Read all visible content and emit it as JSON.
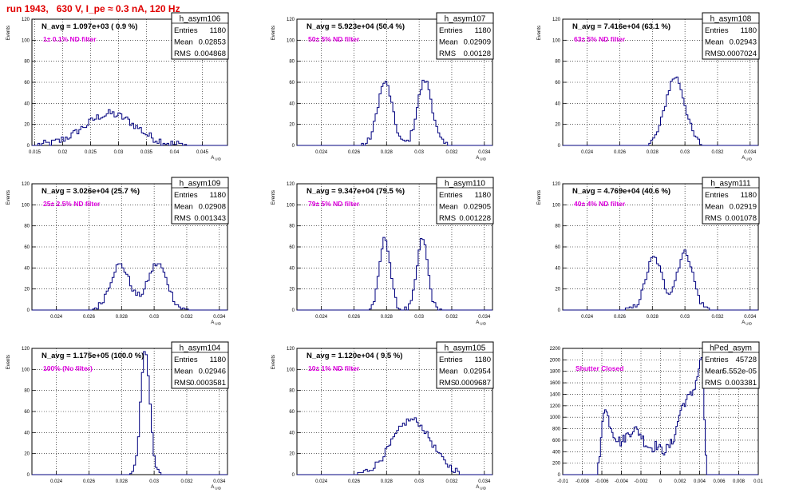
{
  "run_title": "run 1943,   630 V, I_pe ≈ 0.3 nA, 120 Hz",
  "colors": {
    "histogram": "#00007f",
    "stats_box": "#000000",
    "annotation": "#dd00dd",
    "title": "#e00000",
    "grid": "#000000"
  },
  "stats_labels": {
    "entries": "Entries",
    "mean": "Mean",
    "rms": "RMS"
  },
  "chart_data": [
    {
      "type": "histogram",
      "name": "h_asym106",
      "navg": "N_avg = 1.097e+03 ( 0.9 %)",
      "note": "1± 0.1% ND filter",
      "stats": {
        "entries": "1180",
        "mean": "0.02853",
        "rms": "0.004868"
      },
      "ylabel": "Events",
      "xlabel": "A_UID",
      "xlim": [
        0.0145,
        0.0495
      ],
      "ylim": [
        0,
        120
      ],
      "xticks": [
        0.015,
        0.02,
        0.025,
        0.03,
        0.035,
        0.04,
        0.045
      ],
      "xticklabels": [
        "0.015",
        "0.02",
        "0.025",
        "0.03",
        "0.035",
        "0.04",
        "0.045"
      ],
      "yticks": [
        0,
        20,
        40,
        60,
        80,
        100,
        120
      ],
      "peaks": [
        {
          "mu": 0.0285,
          "sigma": 0.0046,
          "h": 30
        }
      ],
      "noise": 8,
      "range": [
        0.0155,
        0.043
      ]
    },
    {
      "type": "histogram",
      "name": "h_asym107",
      "navg": "N_avg = 5.923e+04 (50.4 %)",
      "note": "50± 5% ND filter",
      "stats": {
        "entries": "1180",
        "mean": "0.02909",
        "rms": "0.00128"
      },
      "ylabel": "Events",
      "xlabel": "A_UID",
      "xlim": [
        0.0225,
        0.0345
      ],
      "ylim": [
        0,
        120
      ],
      "xticks": [
        0.024,
        0.026,
        0.028,
        0.03,
        0.032,
        0.034
      ],
      "xticklabels": [
        "0.024",
        "0.026",
        "0.028",
        "0.03",
        "0.032",
        "0.034"
      ],
      "yticks": [
        0,
        20,
        40,
        60,
        80,
        100,
        120
      ],
      "peaks": [
        {
          "mu": 0.0279,
          "sigma": 0.00045,
          "h": 60
        },
        {
          "mu": 0.03035,
          "sigma": 0.00045,
          "h": 62
        }
      ],
      "noise": 6,
      "range": [
        0.0265,
        0.0318
      ]
    },
    {
      "type": "histogram",
      "name": "h_asym108",
      "navg": "N_avg = 7.416e+04 (63.1 %)",
      "note": "63± 5% ND filter",
      "stats": {
        "entries": "1180",
        "mean": "0.02943",
        "rms": "0.0007024"
      },
      "ylabel": "Events",
      "xlabel": "A_UID",
      "xlim": [
        0.0225,
        0.0345
      ],
      "ylim": [
        0,
        120
      ],
      "xticks": [
        0.024,
        0.026,
        0.028,
        0.03,
        0.032,
        0.034
      ],
      "xticklabels": [
        "0.024",
        "0.026",
        "0.028",
        "0.03",
        "0.032",
        "0.034"
      ],
      "yticks": [
        0,
        20,
        40,
        60,
        80,
        100,
        120
      ],
      "peaks": [
        {
          "mu": 0.0294,
          "sigma": 0.0006,
          "h": 65
        }
      ],
      "noise": 7,
      "range": [
        0.0275,
        0.031
      ]
    },
    {
      "type": "histogram",
      "name": "h_asym109",
      "navg": "N_avg = 3.026e+04 (25.7 %)",
      "note": "25± 2.5% ND filter",
      "stats": {
        "entries": "1180",
        "mean": "0.02908",
        "rms": "0.001343"
      },
      "ylabel": "Events",
      "xlabel": "A_UID",
      "xlim": [
        0.0225,
        0.0345
      ],
      "ylim": [
        0,
        120
      ],
      "xticks": [
        0.024,
        0.026,
        0.028,
        0.03,
        0.032,
        0.034
      ],
      "xticklabels": [
        "0.024",
        "0.026",
        "0.028",
        "0.03",
        "0.032",
        "0.034"
      ],
      "yticks": [
        0,
        20,
        40,
        60,
        80,
        100,
        120
      ],
      "peaks": [
        {
          "mu": 0.0279,
          "sigma": 0.0006,
          "h": 43
        },
        {
          "mu": 0.0302,
          "sigma": 0.0006,
          "h": 44
        }
      ],
      "noise": 6,
      "range": [
        0.0262,
        0.0322
      ]
    },
    {
      "type": "histogram",
      "name": "h_asym110",
      "navg": "N_avg = 9.347e+04 (79.5 %)",
      "note": "79± 5% ND filter",
      "stats": {
        "entries": "1180",
        "mean": "0.02905",
        "rms": "0.001228"
      },
      "ylabel": "Events",
      "xlabel": "A_UID",
      "xlim": [
        0.0225,
        0.0345
      ],
      "ylim": [
        0,
        120
      ],
      "xticks": [
        0.024,
        0.026,
        0.028,
        0.03,
        0.032,
        0.034
      ],
      "xticklabels": [
        "0.024",
        "0.026",
        "0.028",
        "0.03",
        "0.032",
        "0.034"
      ],
      "yticks": [
        0,
        20,
        40,
        60,
        80,
        100,
        120
      ],
      "peaks": [
        {
          "mu": 0.0279,
          "sigma": 0.00033,
          "h": 68
        },
        {
          "mu": 0.0302,
          "sigma": 0.00033,
          "h": 68
        }
      ],
      "noise": 5,
      "range": [
        0.0268,
        0.0314
      ]
    },
    {
      "type": "histogram",
      "name": "h_asym111",
      "navg": "N_avg = 4.769e+04 (40.6 %)",
      "note": "40± 4% ND filter",
      "stats": {
        "entries": "1180",
        "mean": "0.02919",
        "rms": "0.001078"
      },
      "ylabel": "Events",
      "xlabel": "A_UID",
      "xlim": [
        0.0225,
        0.0345
      ],
      "ylim": [
        0,
        120
      ],
      "xticks": [
        0.024,
        0.026,
        0.028,
        0.03,
        0.032,
        0.034
      ],
      "xticklabels": [
        "0.024",
        "0.026",
        "0.028",
        "0.03",
        "0.032",
        "0.034"
      ],
      "yticks": [
        0,
        20,
        40,
        60,
        80,
        100,
        120
      ],
      "peaks": [
        {
          "mu": 0.0281,
          "sigma": 0.0005,
          "h": 50
        },
        {
          "mu": 0.03,
          "sigma": 0.0005,
          "h": 55
        }
      ],
      "noise": 6,
      "range": [
        0.0262,
        0.0317
      ]
    },
    {
      "type": "histogram",
      "name": "h_asym104",
      "navg": "N_avg = 1.175e+05 (100.0 %)",
      "note": "100% (No filter)",
      "stats": {
        "entries": "1180",
        "mean": "0.02946",
        "rms": "0.0003581"
      },
      "ylabel": "Events",
      "xlabel": "A_UID",
      "xlim": [
        0.0225,
        0.0345
      ],
      "ylim": [
        0,
        120
      ],
      "xticks": [
        0.024,
        0.026,
        0.028,
        0.03,
        0.032,
        0.034
      ],
      "xticklabels": [
        "0.024",
        "0.026",
        "0.028",
        "0.03",
        "0.032",
        "0.034"
      ],
      "yticks": [
        0,
        20,
        40,
        60,
        80,
        100,
        120
      ],
      "peaks": [
        {
          "mu": 0.02946,
          "sigma": 0.00028,
          "h": 118
        }
      ],
      "noise": 5,
      "range": [
        0.0285,
        0.0305
      ]
    },
    {
      "type": "histogram",
      "name": "h_asym105",
      "navg": "N_avg = 1.120e+04 ( 9.5 %)",
      "note": "10± 1% ND filter",
      "stats": {
        "entries": "1180",
        "mean": "0.02954",
        "rms": "0.0009687"
      },
      "ylabel": "Events",
      "xlabel": "A_UID",
      "xlim": [
        0.0225,
        0.0345
      ],
      "ylim": [
        0,
        120
      ],
      "xticks": [
        0.024,
        0.026,
        0.028,
        0.03,
        0.032,
        0.034
      ],
      "xticklabels": [
        "0.024",
        "0.026",
        "0.028",
        "0.03",
        "0.032",
        "0.034"
      ],
      "yticks": [
        0,
        20,
        40,
        60,
        80,
        100,
        120
      ],
      "peaks": [
        {
          "mu": 0.02954,
          "sigma": 0.0012,
          "h": 52
        }
      ],
      "noise": 6,
      "range": [
        0.0262,
        0.0325
      ]
    },
    {
      "type": "histogram",
      "name": "hPed_asym",
      "navg": "",
      "note": "Shutter Closed",
      "stats": {
        "entries": "45728",
        "mean": "5.552e-05",
        "rms": "0.003381"
      },
      "ylabel": "",
      "xlabel": "",
      "xlim": [
        -0.01,
        0.01
      ],
      "ylim": [
        0,
        2200
      ],
      "xticks": [
        -0.01,
        -0.008,
        -0.006,
        -0.004,
        -0.002,
        0,
        0.002,
        0.004,
        0.006,
        0.008,
        0.01
      ],
      "xticklabels": [
        "-0.01",
        "-0.008",
        "-0.006",
        "-0.004",
        "-0.002",
        "0",
        "0.002",
        "0.004",
        "0.006",
        "0.008",
        "0.01"
      ],
      "yticks": [
        0,
        200,
        400,
        600,
        800,
        1000,
        1200,
        1400,
        1600,
        1800,
        2000,
        2200
      ],
      "pedestal": true
    }
  ]
}
